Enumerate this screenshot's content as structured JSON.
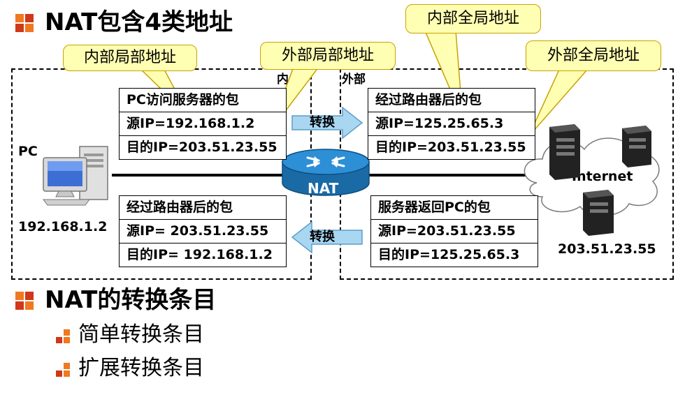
{
  "heading1": "NAT包含4类地址",
  "heading2": "NAT的转换条目",
  "subitems": [
    "简单转换条目",
    "扩展转换条目"
  ],
  "regions": {
    "inside_label": "内",
    "outside_label": "外部"
  },
  "callouts": {
    "inside_local": "内部局部地址",
    "outside_local": "外部局部地址",
    "inside_global": "内部全局地址",
    "outside_global": "外部全局地址"
  },
  "packets": {
    "pc_to_server": {
      "title": "PC访问服务器的包",
      "src": "源IP=192.168.1.2",
      "dst": "目的IP=203.51.23.55"
    },
    "after_router_out": {
      "title": "经过路由器后的包",
      "src": "源IP=125.25.65.3",
      "dst": "目的IP=203.51.23.55"
    },
    "after_router_in": {
      "title": "经过路由器后的包",
      "src": "源IP= 203.51.23.55",
      "dst": "目的IP= 192.168.1.2"
    },
    "server_return": {
      "title": "服务器返回PC的包",
      "src": "源IP=203.51.23.55",
      "dst": "目的IP=125.25.65.3"
    }
  },
  "arrows": {
    "convert_out": "转换",
    "convert_in": "转换"
  },
  "pc": {
    "label": "PC",
    "ip": "192.168.1.2"
  },
  "router": {
    "label": "NAT"
  },
  "internet": {
    "label": "Internet",
    "server_ip": "203.51.23.55"
  },
  "colors": {
    "bullet_orange": "#f07820",
    "bullet_red": "#d0381a",
    "callout_fill": "#ffffb3",
    "callout_stroke": "#c8a200",
    "arrow_fill": "#a9d6f0",
    "arrow_stroke": "#5b9ec8",
    "router_blue": "#1f7fc1"
  }
}
